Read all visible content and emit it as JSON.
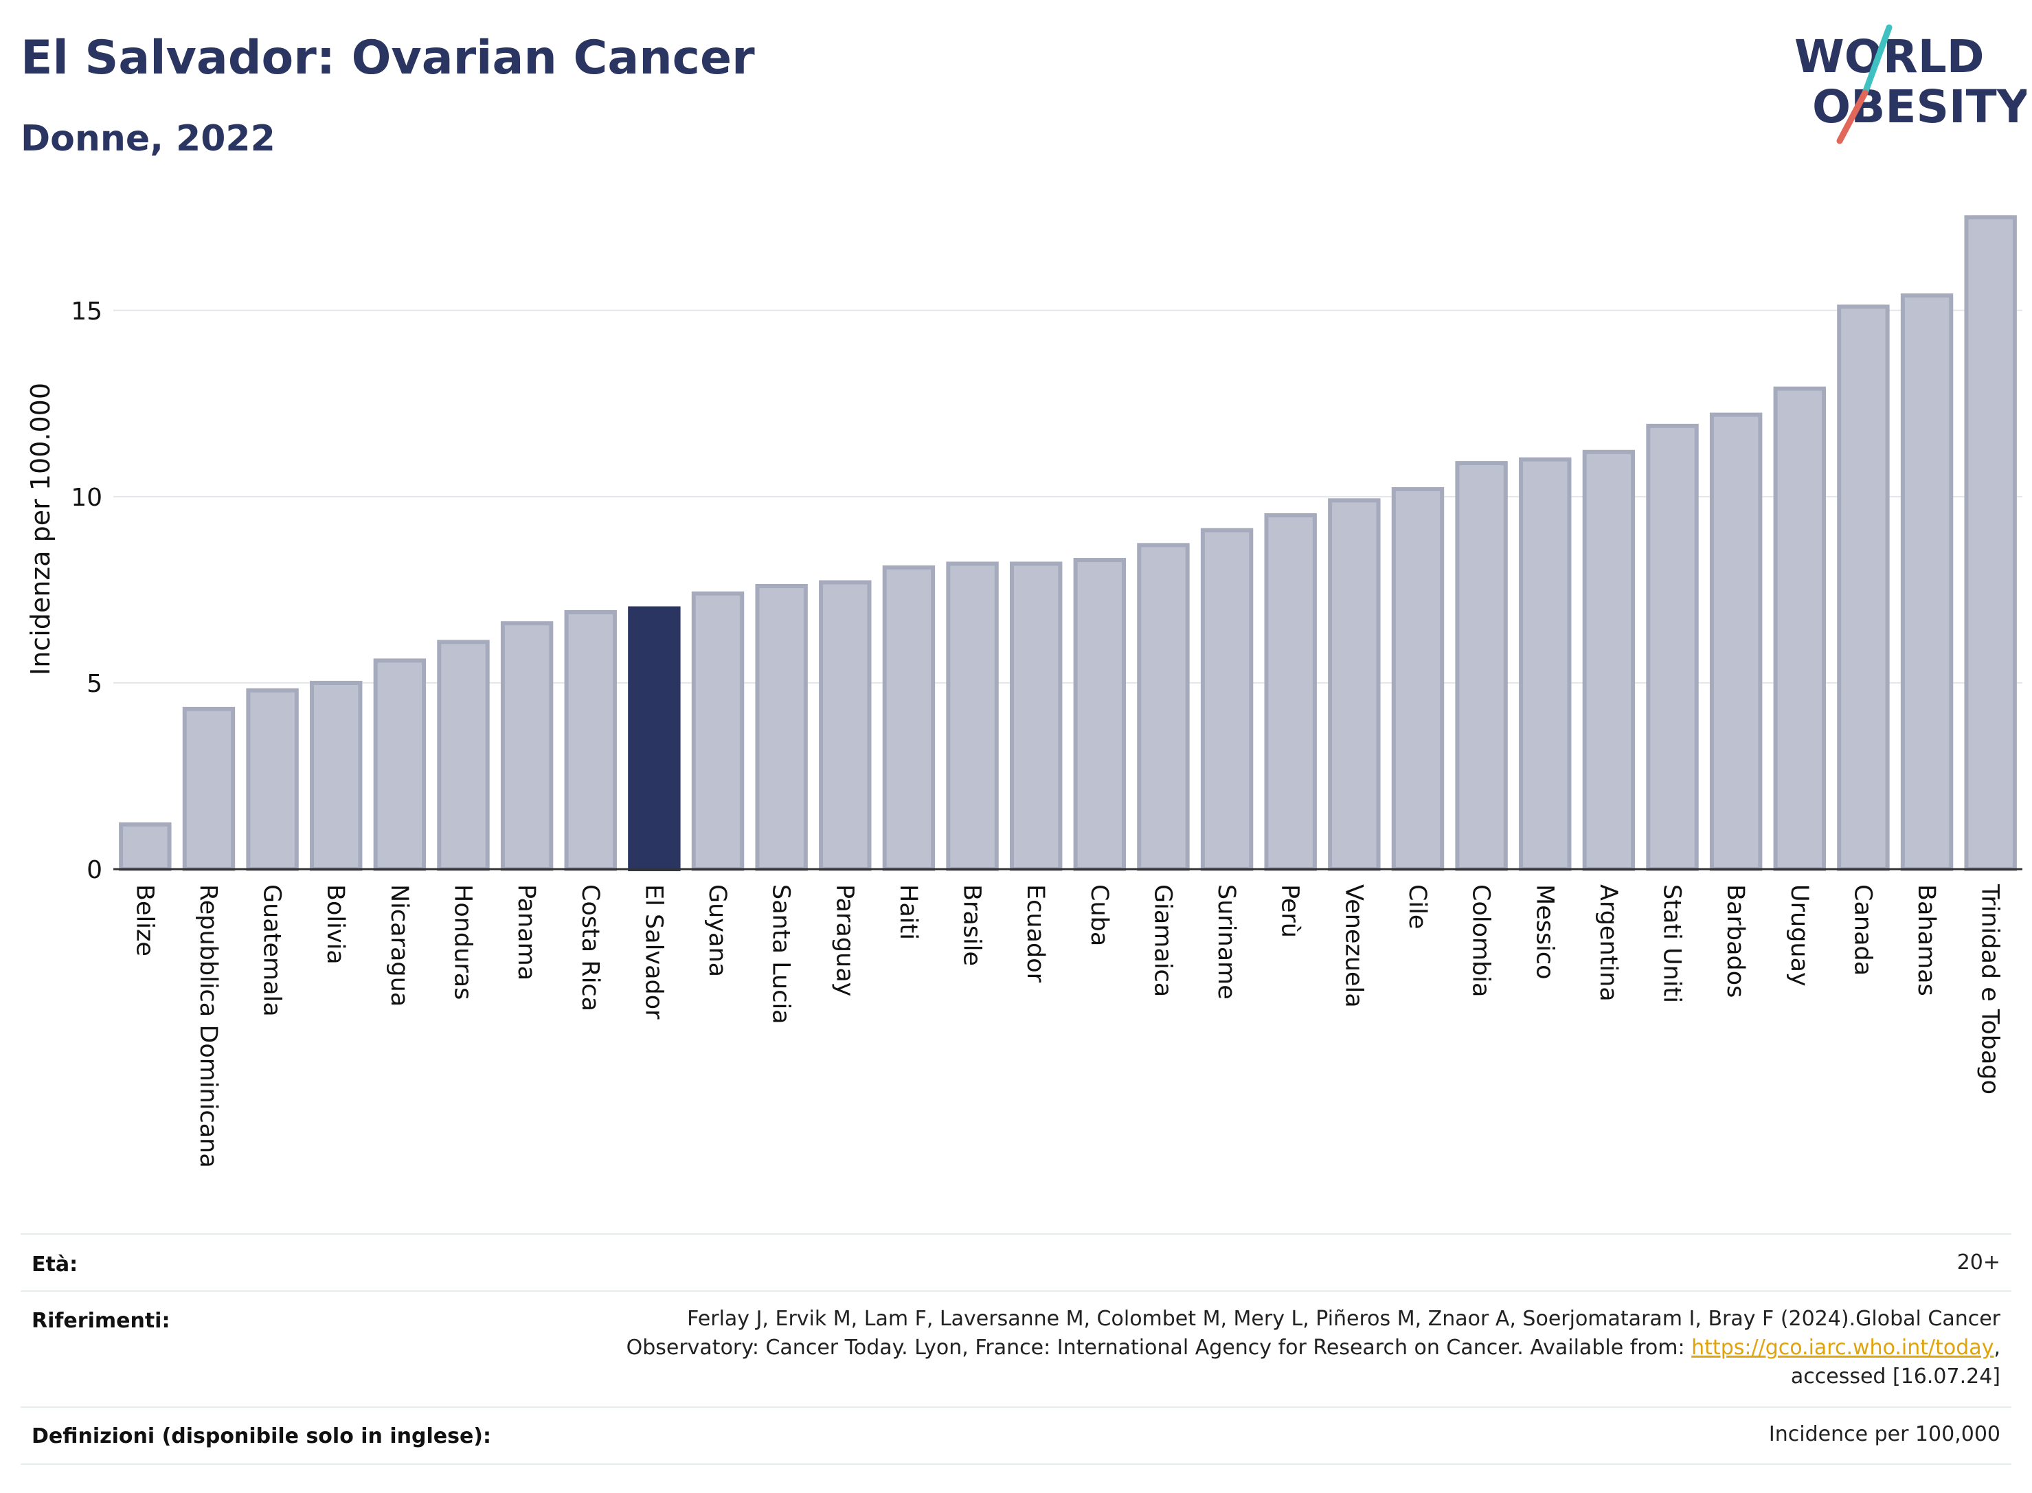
{
  "header": {
    "title": "El Salvador: Ovarian Cancer",
    "subtitle": "Donne, 2022"
  },
  "logo": {
    "line1": "WORLD",
    "line2": "OBESITY",
    "text_color": "#2b3561",
    "slash_colors": [
      "#3ec1c0",
      "#e0675a"
    ]
  },
  "chart_data": {
    "type": "bar",
    "title": "El Salvador: Ovarian Cancer",
    "subtitle": "Donne, 2022",
    "ylabel": "Incidenza per 100.000",
    "xlabel": "",
    "ylim": [
      0,
      17.8
    ],
    "yticks": [
      0,
      5,
      10,
      15
    ],
    "grid": true,
    "highlight": "El Salvador",
    "colors": {
      "bar": "#bec2d0",
      "bar_border": "#a5aabd",
      "highlight": "#2b3561"
    },
    "categories": [
      "Belize",
      "Repubblica Dominicana",
      "Guatemala",
      "Bolivia",
      "Nicaragua",
      "Honduras",
      "Panama",
      "Costa Rica",
      "El Salvador",
      "Guyana",
      "Santa Lucia",
      "Paraguay",
      "Haiti",
      "Brasile",
      "Ecuador",
      "Cuba",
      "Giamaica",
      "Suriname",
      "Perù",
      "Venezuela",
      "Cile",
      "Colombia",
      "Messico",
      "Argentina",
      "Stati Uniti",
      "Barbados",
      "Uruguay",
      "Canada",
      "Bahamas",
      "Trinidad e Tobago"
    ],
    "values": [
      1.2,
      4.3,
      4.8,
      5.0,
      5.6,
      6.1,
      6.6,
      6.9,
      7.0,
      7.4,
      7.6,
      7.7,
      8.1,
      8.2,
      8.2,
      8.3,
      8.7,
      9.1,
      9.5,
      9.9,
      10.2,
      10.9,
      11.0,
      11.2,
      11.9,
      12.2,
      12.9,
      15.1,
      15.4,
      17.5
    ]
  },
  "info": {
    "age_label": "Età:",
    "age_value": "20+",
    "refs_label": "Riferimenti:",
    "refs_line1": "Ferlay J, Ervik M, Lam F, Laversanne M, Colombet M, Mery L, Piñeros M, Znaor A, Soerjomataram I, Bray F (2024).Global Cancer",
    "refs_line2_pre": "Observatory: Cancer Today. Lyon, France: International Agency for Research on Cancer. Available from: ",
    "refs_link": "https://gco.iarc.who.int/today",
    "refs_line2_post": ",",
    "refs_line3": "accessed [16.07.24]",
    "defs_label": "Definizioni (disponibile solo in inglese):",
    "defs_value": "Incidence per 100,000"
  }
}
